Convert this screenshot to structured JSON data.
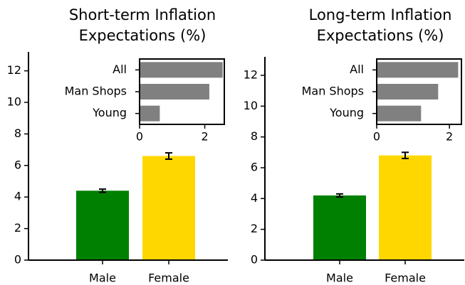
{
  "chart_data": [
    {
      "type": "bar",
      "title": [
        "Short-term Inflation",
        "Expectations (%)"
      ],
      "categories": [
        "Male",
        "Female"
      ],
      "values": [
        4.4,
        6.6
      ],
      "errors": [
        0.1,
        0.2
      ],
      "colors": [
        "#008000",
        "#ffd700"
      ],
      "ylim": [
        0,
        13.2
      ],
      "yticks": [
        0,
        2,
        4,
        6,
        8,
        10,
        12
      ],
      "inset": {
        "type": "barh",
        "categories": [
          "All",
          "Man Shops",
          "Young"
        ],
        "values": [
          2.55,
          2.14,
          0.62
        ],
        "color": "#808080",
        "xlim": [
          0,
          2.6
        ],
        "xticks": [
          0,
          2
        ]
      }
    },
    {
      "type": "bar",
      "title": [
        "Long-term Inflation",
        "Expectations (%)"
      ],
      "categories": [
        "Male",
        "Female"
      ],
      "values": [
        4.2,
        6.8
      ],
      "errors": [
        0.1,
        0.2
      ],
      "colors": [
        "#008000",
        "#ffd700"
      ],
      "ylim": [
        0,
        13.2
      ],
      "yticks": [
        0,
        2,
        4,
        6,
        8,
        10,
        12
      ],
      "inset": {
        "type": "barh",
        "categories": [
          "All",
          "Man Shops",
          "Young"
        ],
        "values": [
          2.24,
          1.69,
          1.22
        ],
        "color": "#808080",
        "xlim": [
          0,
          2.33
        ],
        "xticks": [
          0,
          2
        ]
      }
    }
  ]
}
